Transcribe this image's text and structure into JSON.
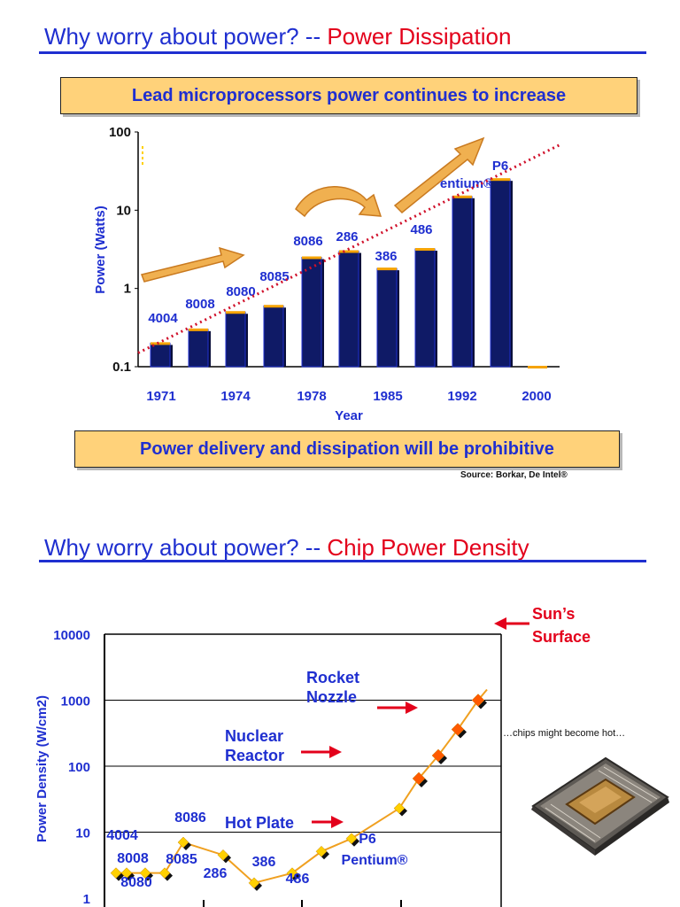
{
  "slide1": {
    "title_main": "Why worry about power? --",
    "title_accent": "Power Dissipation",
    "banner_top": "Lead microprocessors power continues to increase",
    "banner_bottom": "Power delivery and dissipation will be prohibitive",
    "source": "Source: Borkar, De Intel®"
  },
  "slide2": {
    "title_main": "Why worry about power? --",
    "title_accent": "Chip Power Density",
    "callouts": {
      "hot_plate": "Hot Plate",
      "nuclear_reactor": "Nuclear Reactor",
      "rocket_nozzle": "Rocket Nozzle",
      "suns_surface": "Sun’s Surface"
    },
    "chip_caption": "…chips might become hot…"
  },
  "chart_data": [
    {
      "type": "bar",
      "ylabel": "Power (Watts)",
      "xlabel": "Year",
      "yscale": "log",
      "ylim": [
        0.1,
        100
      ],
      "yticks": [
        "100",
        "10",
        "1",
        "0.1"
      ],
      "xticks": [
        "1971",
        "1974",
        "1978",
        "1985",
        "1992",
        "2000"
      ],
      "bars": [
        {
          "label": "4004",
          "value": 0.2
        },
        {
          "label": "8008",
          "value": 0.3
        },
        {
          "label": "8080",
          "value": 0.5
        },
        {
          "label": "8085",
          "value": 0.6
        },
        {
          "label": "8086",
          "value": 2.5
        },
        {
          "label": "286",
          "value": 3.0
        },
        {
          "label": "386",
          "value": 1.8
        },
        {
          "label": "486",
          "value": 3.2
        },
        {
          "label": "Pentium®",
          "value": 15
        },
        {
          "label": "P6",
          "value": 25
        },
        {
          "label": "",
          "value": 0.1
        }
      ],
      "trend": [
        0.15,
        70
      ],
      "colors": {
        "bar": "#0f1a66",
        "trend": "#d0102a",
        "label": "#1f2fd0"
      }
    },
    {
      "type": "line",
      "ylabel": "Power Density (W/cm2)",
      "yscale": "log",
      "ylim": [
        1,
        10000
      ],
      "yticks": [
        "10000",
        "1000",
        "100",
        "10",
        "1"
      ],
      "points": [
        2.4,
        2.4,
        2.4,
        2.4,
        7,
        4.5,
        1.7,
        2.4,
        5.1,
        8,
        23,
        65,
        145,
        360,
        1000
      ],
      "point_labels": [
        "4004",
        "8008",
        "8080",
        "8085",
        "8086",
        "286",
        "386",
        "486",
        "P6",
        "Pentium®"
      ],
      "colors": {
        "line": "#f0a020",
        "marker_early": "#ffd000",
        "marker_late": "#ff5a00"
      }
    }
  ]
}
